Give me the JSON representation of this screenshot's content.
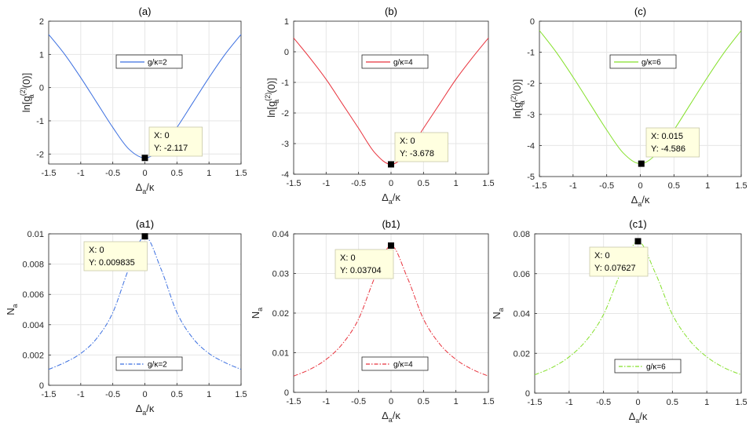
{
  "colors": {
    "blue": "#3b6fe0",
    "red": "#e8323c",
    "green": "#84e02a"
  },
  "chart_data": [
    {
      "id": "a",
      "title": "(a)",
      "type": "line",
      "style": "solid",
      "color": "#3b6fe0",
      "xlabel": "Δ_a/κ",
      "ylabel": "ln[g_a^(2)(0)]",
      "xlim": [
        -1.5,
        1.5
      ],
      "ylim": [
        -2.3,
        2.0
      ],
      "xticks": [
        "-1.5",
        "-1",
        "-0.5",
        "0",
        "0.5",
        "1",
        "1.5"
      ],
      "yticks": [
        "-2",
        "-1",
        "0",
        "1",
        "2"
      ],
      "legend": "g/κ=2",
      "x": [
        -1.5,
        -1.25,
        -1.0,
        -0.75,
        -0.5,
        -0.25,
        0,
        0.25,
        0.5,
        0.75,
        1.0,
        1.25,
        1.5
      ],
      "y": [
        1.6,
        1.0,
        0.3,
        -0.45,
        -1.2,
        -1.85,
        -2.117,
        -1.85,
        -1.2,
        -0.45,
        0.3,
        1.0,
        1.6
      ],
      "datatip": {
        "x": 0,
        "y": -2.117,
        "x_text": "X: 0",
        "y_text": "Y: -2.117"
      }
    },
    {
      "id": "b",
      "title": "(b)",
      "type": "line",
      "style": "solid",
      "color": "#e8323c",
      "xlabel": "Δ_a/κ",
      "ylabel": "ln[g_a^(2)(0)]",
      "xlim": [
        -1.5,
        1.5
      ],
      "ylim": [
        -4.0,
        1.0
      ],
      "xticks": [
        "-1.5",
        "-1",
        "-0.5",
        "0",
        "0.5",
        "1",
        "1.5"
      ],
      "yticks": [
        "-4",
        "-3",
        "-2",
        "-1",
        "0",
        "1"
      ],
      "legend": "g/κ=4",
      "x": [
        -1.5,
        -1.25,
        -1.0,
        -0.75,
        -0.5,
        -0.25,
        0,
        0.25,
        0.5,
        0.75,
        1.0,
        1.25,
        1.5
      ],
      "y": [
        0.45,
        -0.2,
        -0.9,
        -1.7,
        -2.5,
        -3.3,
        -3.678,
        -3.3,
        -2.5,
        -1.7,
        -0.9,
        -0.2,
        0.45
      ],
      "datatip": {
        "x": 0,
        "y": -3.678,
        "x_text": "X: 0",
        "y_text": "Y: -3.678"
      }
    },
    {
      "id": "c",
      "title": "(c)",
      "type": "line",
      "style": "solid",
      "color": "#84e02a",
      "xlabel": "Δ_a/κ",
      "ylabel": "ln[g_a^(2)(0)]",
      "xlim": [
        -1.5,
        1.5
      ],
      "ylim": [
        -5.0,
        0.0
      ],
      "xticks": [
        "-1.5",
        "-1",
        "-0.5",
        "0",
        "0.5",
        "1",
        "1.5"
      ],
      "yticks": [
        "-5",
        "-4",
        "-3",
        "-2",
        "-1",
        "0"
      ],
      "legend": "g/κ=6",
      "x": [
        -1.5,
        -1.25,
        -1.0,
        -0.75,
        -0.5,
        -0.25,
        0,
        0.25,
        0.5,
        0.75,
        1.0,
        1.25,
        1.5
      ],
      "y": [
        -0.3,
        -1.0,
        -1.8,
        -2.65,
        -3.5,
        -4.25,
        -4.586,
        -4.25,
        -3.5,
        -2.65,
        -1.8,
        -1.0,
        -0.3
      ],
      "datatip": {
        "x": 0.015,
        "y": -4.586,
        "x_text": "X: 0.015",
        "y_text": "Y: -4.586"
      }
    },
    {
      "id": "a1",
      "title": "(a1)",
      "type": "line",
      "style": "dashdot",
      "color": "#3b6fe0",
      "xlabel": "Δ_a/κ",
      "ylabel": "N_a",
      "xlim": [
        -1.5,
        1.5
      ],
      "ylim": [
        0,
        0.01
      ],
      "xticks": [
        "-1.5",
        "-1",
        "-0.5",
        "0",
        "0.5",
        "1",
        "1.5"
      ],
      "yticks": [
        "0",
        "0.002",
        "0.004",
        "0.006",
        "0.008",
        "0.01"
      ],
      "legend": "g/κ=2",
      "x": [
        -1.5,
        -1.25,
        -1.0,
        -0.75,
        -0.5,
        -0.25,
        0,
        0.25,
        0.5,
        0.75,
        1.0,
        1.25,
        1.5
      ],
      "y": [
        0.00105,
        0.0015,
        0.0021,
        0.0031,
        0.0048,
        0.0077,
        0.009835,
        0.0077,
        0.0048,
        0.0031,
        0.0021,
        0.0015,
        0.00105
      ],
      "datatip": {
        "x": 0,
        "y": 0.009835,
        "x_text": "X: 0",
        "y_text": "Y: 0.009835"
      }
    },
    {
      "id": "b1",
      "title": "(b1)",
      "type": "line",
      "style": "dashdot",
      "color": "#e8323c",
      "xlabel": "Δ_a/κ",
      "ylabel": "N_a",
      "xlim": [
        -1.5,
        1.5
      ],
      "ylim": [
        0,
        0.04
      ],
      "xticks": [
        "-1.5",
        "-1",
        "-0.5",
        "0",
        "0.5",
        "1",
        "1.5"
      ],
      "yticks": [
        "0",
        "0.01",
        "0.02",
        "0.03",
        "0.04"
      ],
      "legend": "g/κ=4",
      "x": [
        -1.5,
        -1.25,
        -1.0,
        -0.75,
        -0.5,
        -0.25,
        0,
        0.25,
        0.5,
        0.75,
        1.0,
        1.25,
        1.5
      ],
      "y": [
        0.0041,
        0.0058,
        0.0083,
        0.0122,
        0.0185,
        0.029,
        0.03704,
        0.029,
        0.0185,
        0.0122,
        0.0083,
        0.0058,
        0.0041
      ],
      "datatip": {
        "x": 0,
        "y": 0.03704,
        "x_text": "X: 0",
        "y_text": "Y: 0.03704"
      }
    },
    {
      "id": "c1",
      "title": "(c1)",
      "type": "line",
      "style": "dashdot",
      "color": "#84e02a",
      "xlabel": "Δ_a/κ",
      "ylabel": "N_a",
      "xlim": [
        -1.5,
        1.5
      ],
      "ylim": [
        0,
        0.08
      ],
      "xticks": [
        "-1.5",
        "-1",
        "-0.5",
        "0",
        "0.5",
        "1",
        "1.5"
      ],
      "yticks": [
        "0",
        "0.02",
        "0.04",
        "0.06",
        "0.08"
      ],
      "legend": "g/κ=6",
      "x": [
        -1.5,
        -1.25,
        -1.0,
        -0.75,
        -0.5,
        -0.25,
        0,
        0.25,
        0.5,
        0.75,
        1.0,
        1.25,
        1.5
      ],
      "y": [
        0.0092,
        0.0128,
        0.0182,
        0.0265,
        0.0395,
        0.0605,
        0.07627,
        0.0605,
        0.0395,
        0.0265,
        0.0182,
        0.0128,
        0.0092
      ],
      "datatip": {
        "x": 0,
        "y": 0.07627,
        "x_text": "X: 0",
        "y_text": "Y: 0.07627"
      }
    }
  ]
}
